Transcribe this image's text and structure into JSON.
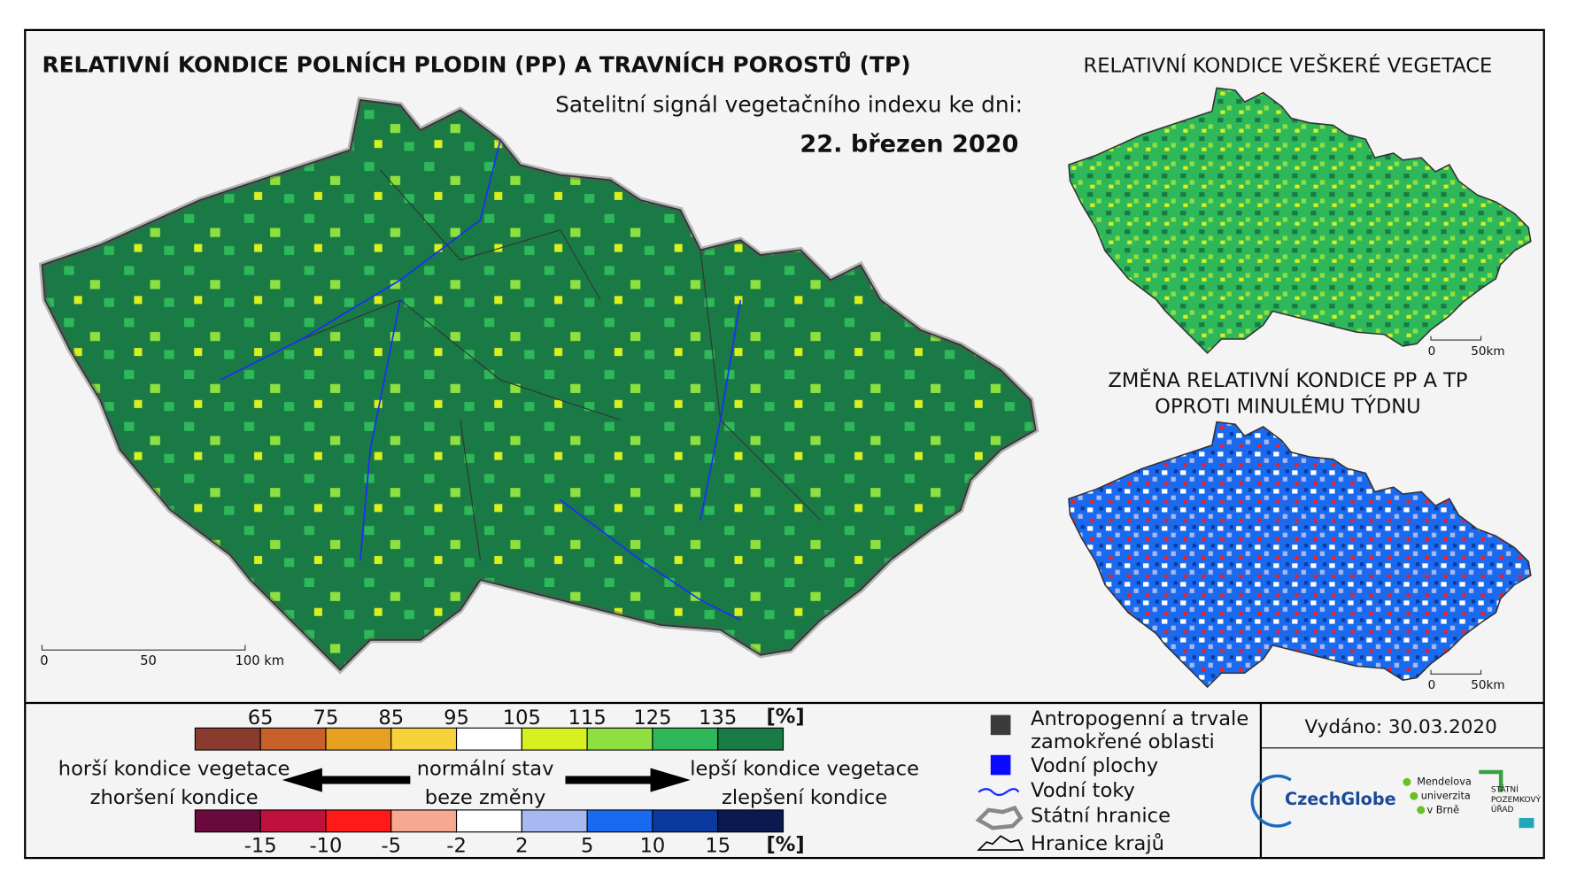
{
  "main_map": {
    "title": "RELATIVNÍ KONDICE POLNÍCH PLODIN (PP) A TRAVNÍCH POROSTŮ (TP)",
    "subtitle": "Satelitní signál vegetačního indexu ke dni:",
    "date": "22. březen 2020",
    "scale_labels": [
      "0",
      "50",
      "100 km"
    ]
  },
  "vegetation_map": {
    "title": "RELATIVNÍ KONDICE VEŠKERÉ VEGETACE",
    "scale_labels": [
      "0",
      "50km"
    ]
  },
  "change_map": {
    "title_lines": [
      "ZMĚNA RELATIVNÍ KONDICE PP A TP",
      "OPROTI MINULÉMU TÝDNU"
    ],
    "scale_labels": [
      "0",
      "50km"
    ]
  },
  "legend": {
    "condition_scale": {
      "ticks": [
        "65",
        "75",
        "85",
        "95",
        "105",
        "115",
        "125",
        "135"
      ],
      "unit": "[%]",
      "colors": [
        "#8b3a2e",
        "#c8602a",
        "#e8a020",
        "#f7d23a",
        "#ffffff",
        "#d8f020",
        "#8ee040",
        "#2eb85a",
        "#1a7a45"
      ]
    },
    "change_scale": {
      "ticks": [
        "-15",
        "-10",
        "-5",
        "-2",
        "2",
        "5",
        "10",
        "15"
      ],
      "unit": "[%]",
      "colors": [
        "#6a0a3c",
        "#c0103c",
        "#ff1a1a",
        "#f7a890",
        "#ffffff",
        "#a8b8f0",
        "#1a6af0",
        "#0a3aa0",
        "#0a1a50"
      ]
    },
    "left_labels": [
      "horší kondice vegetace",
      "zhoršení kondice"
    ],
    "center_labels": [
      "normální stav",
      "beze změny"
    ],
    "right_labels": [
      "lepší kondice vegetace",
      "zlepšení kondice"
    ]
  },
  "symbols": {
    "anthropogenic": [
      "Antropogenní a trvale",
      "zamokřené oblasti"
    ],
    "water_bodies": "Vodní plochy",
    "rivers": "Vodní toky",
    "state_border": "Státní hranice",
    "regions": "Hranice krajů"
  },
  "issued": "Vydáno: 30.03.2020",
  "logos": {
    "czechglobe": "CzechGlobe",
    "mendelu": [
      "Mendelova",
      "univerzita",
      "v Brně"
    ],
    "spu": [
      "STÁTNÍ",
      "POZEMKOVÝ",
      "ÚŘAD"
    ]
  }
}
